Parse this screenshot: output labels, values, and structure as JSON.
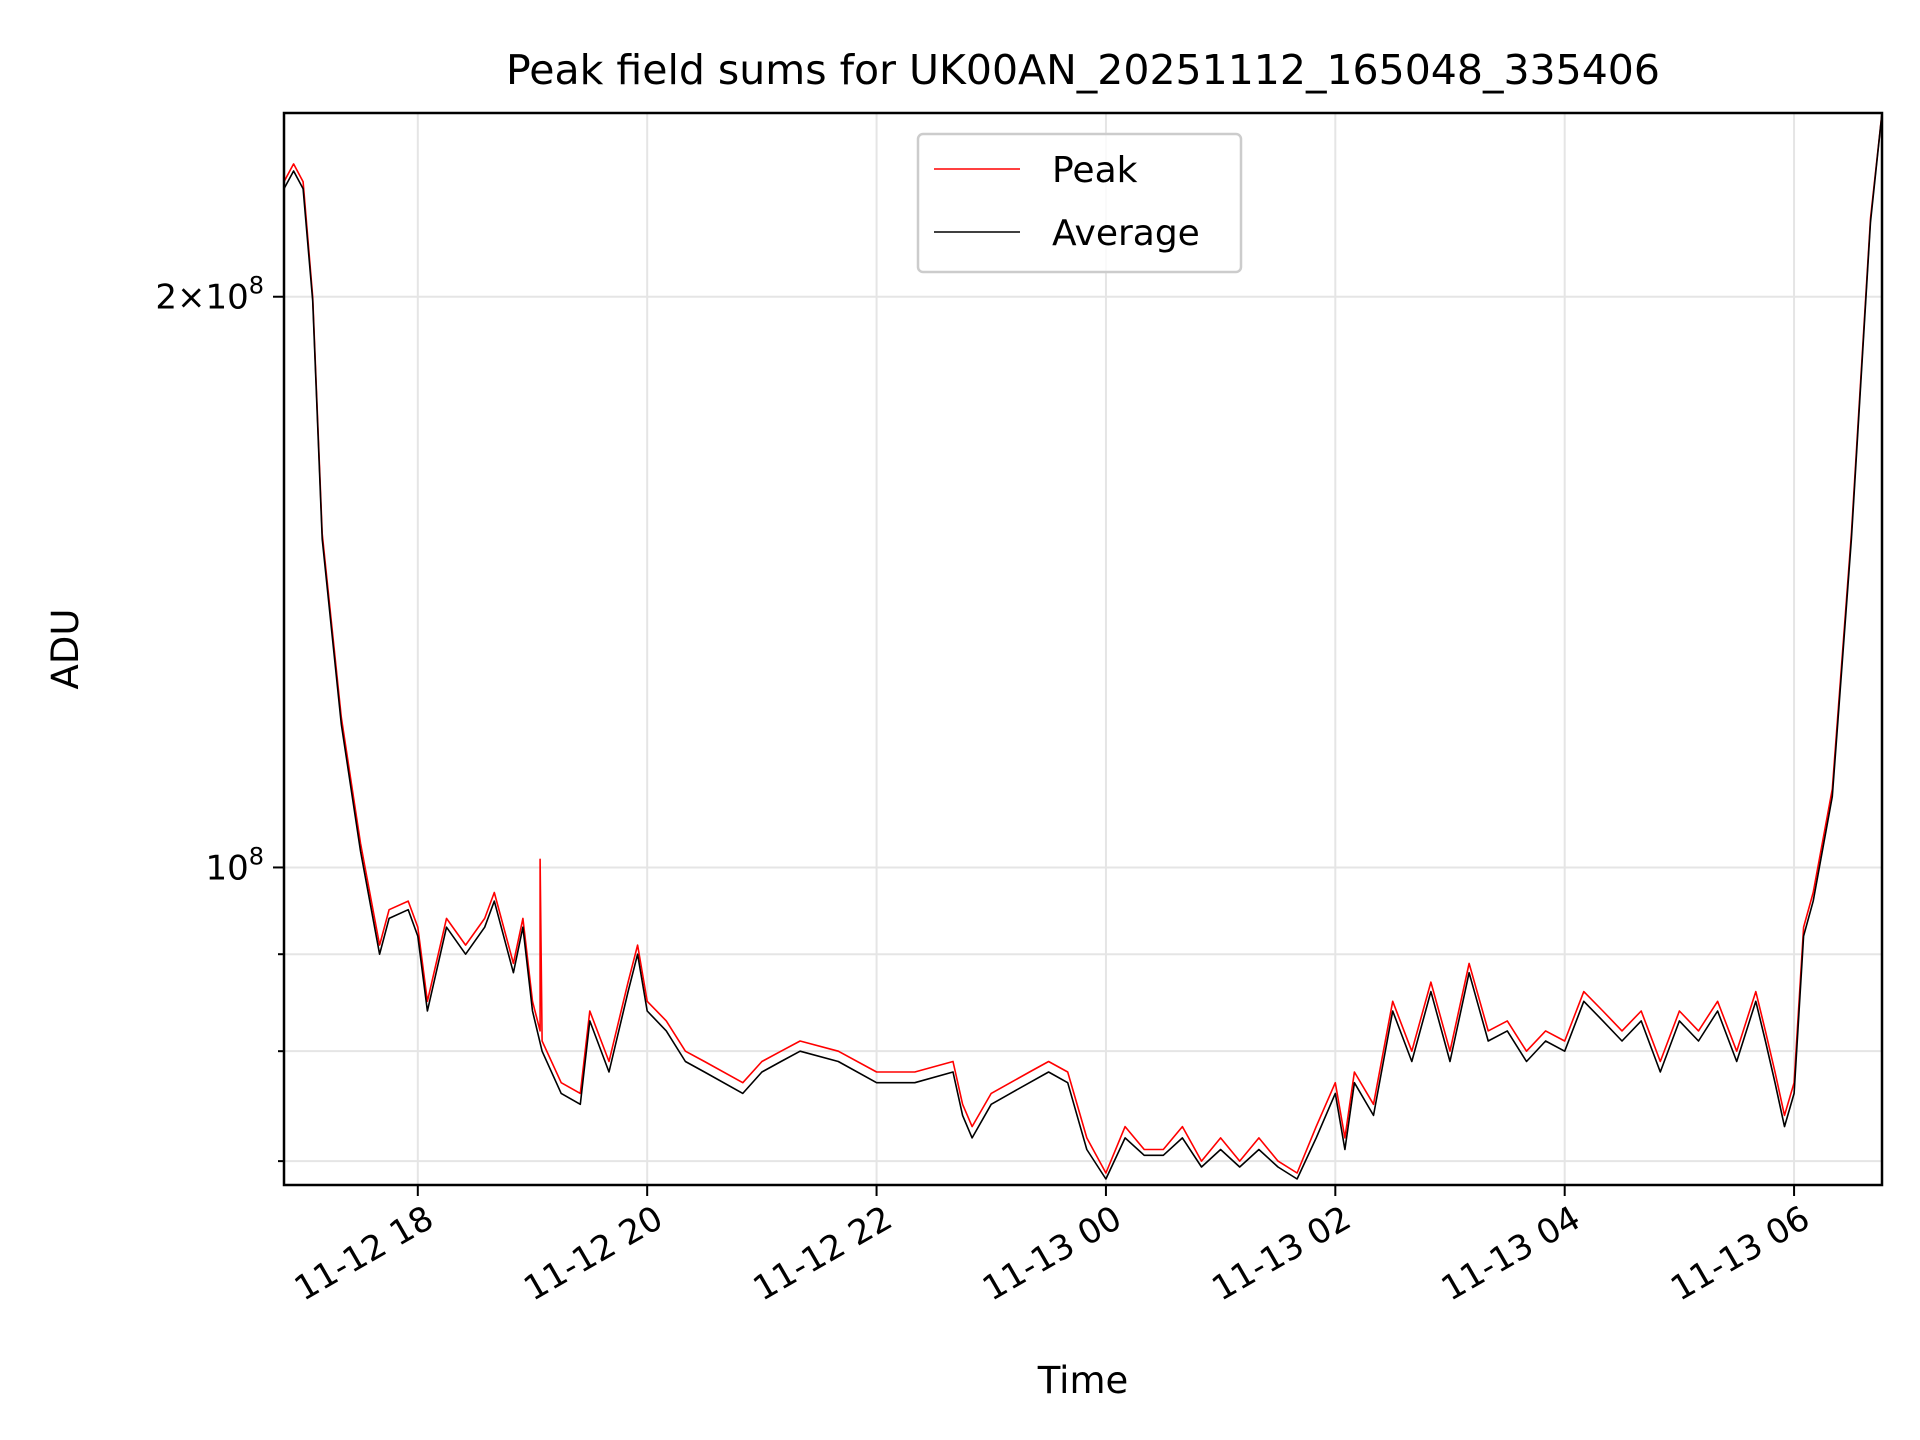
{
  "chart_data": {
    "type": "line",
    "title": "Peak field sums for UK00AN_20251112_165048_335406",
    "xlabel": "Time",
    "ylabel": "ADU",
    "yscale": "log",
    "xlim": [
      "2025-11-12T16:50",
      "2025-11-13T06:46"
    ],
    "ylim": [
      68000000,
      250000000
    ],
    "grid": true,
    "legend_position": "top-center",
    "x_ticks": [
      "11-12 18",
      "11-12 20",
      "11-12 22",
      "11-13 00",
      "11-13 02",
      "11-13 04",
      "11-13 06"
    ],
    "y_ticks": [
      {
        "value": 200000000,
        "label": "2 × 10⁸",
        "mantissa": "2",
        "exponent": "8",
        "major": true
      },
      {
        "value": 100000000,
        "label": "10⁸",
        "mantissa": "",
        "exponent": "8",
        "major": true
      },
      {
        "value": 90000000,
        "major": false
      },
      {
        "value": 80000000,
        "major": false
      },
      {
        "value": 70000000,
        "major": false
      }
    ],
    "colors": {
      "peak": "#ff0000",
      "average": "#000000"
    },
    "series": [
      {
        "name": "Peak",
        "color": "#ff0000",
        "x": [
          "2025-11-12T16:50",
          "2025-11-12T16:55",
          "2025-11-12T17:00",
          "2025-11-12T17:05",
          "2025-11-12T17:10",
          "2025-11-12T17:20",
          "2025-11-12T17:30",
          "2025-11-12T17:40",
          "2025-11-12T17:45",
          "2025-11-12T17:55",
          "2025-11-12T18:00",
          "2025-11-12T18:05",
          "2025-11-12T18:15",
          "2025-11-12T18:25",
          "2025-11-12T18:35",
          "2025-11-12T18:40",
          "2025-11-12T18:50",
          "2025-11-12T18:55",
          "2025-11-12T19:00",
          "2025-11-12T19:04",
          "2025-11-12T19:04",
          "2025-11-12T19:05",
          "2025-11-12T19:15",
          "2025-11-12T19:25",
          "2025-11-12T19:30",
          "2025-11-12T19:40",
          "2025-11-12T19:50",
          "2025-11-12T19:55",
          "2025-11-12T20:00",
          "2025-11-12T20:10",
          "2025-11-12T20:20",
          "2025-11-12T20:30",
          "2025-11-12T20:50",
          "2025-11-12T21:00",
          "2025-11-12T21:10",
          "2025-11-12T21:20",
          "2025-11-12T21:40",
          "2025-11-12T22:00",
          "2025-11-12T22:20",
          "2025-11-12T22:40",
          "2025-11-12T22:45",
          "2025-11-12T22:50",
          "2025-11-12T23:00",
          "2025-11-12T23:10",
          "2025-11-12T23:20",
          "2025-11-12T23:30",
          "2025-11-12T23:40",
          "2025-11-12T23:50",
          "2025-11-13T00:00",
          "2025-11-13T00:10",
          "2025-11-13T00:20",
          "2025-11-13T00:30",
          "2025-11-13T00:40",
          "2025-11-13T00:50",
          "2025-11-13T01:00",
          "2025-11-13T01:10",
          "2025-11-13T01:20",
          "2025-11-13T01:30",
          "2025-11-13T01:40",
          "2025-11-13T01:50",
          "2025-11-13T02:00",
          "2025-11-13T02:05",
          "2025-11-13T02:10",
          "2025-11-13T02:20",
          "2025-11-13T02:30",
          "2025-11-13T02:40",
          "2025-11-13T02:50",
          "2025-11-13T03:00",
          "2025-11-13T03:10",
          "2025-11-13T03:20",
          "2025-11-13T03:30",
          "2025-11-13T03:40",
          "2025-11-13T03:50",
          "2025-11-13T04:00",
          "2025-11-13T04:10",
          "2025-11-13T04:20",
          "2025-11-13T04:30",
          "2025-11-13T04:40",
          "2025-11-13T04:50",
          "2025-11-13T05:00",
          "2025-11-13T05:10",
          "2025-11-13T05:20",
          "2025-11-13T05:30",
          "2025-11-13T05:40",
          "2025-11-13T05:45",
          "2025-11-13T05:50",
          "2025-11-13T05:55",
          "2025-11-13T06:00",
          "2025-11-13T06:05",
          "2025-11-13T06:10",
          "2025-11-13T06:20",
          "2025-11-13T06:30",
          "2025-11-13T06:40",
          "2025-11-13T06:46"
        ],
        "values": [
          230000000,
          235000000,
          230000000,
          200000000,
          150000000,
          120000000,
          103000000,
          91000000,
          95000000,
          96000000,
          93000000,
          85000000,
          94000000,
          91000000,
          94000000,
          97000000,
          89000000,
          94000000,
          85000000,
          82000000,
          101000000,
          81000000,
          77000000,
          76000000,
          84000000,
          79000000,
          87000000,
          91000000,
          85000000,
          83000000,
          80000000,
          79000000,
          77000000,
          79000000,
          80000000,
          81000000,
          80000000,
          78000000,
          78000000,
          79000000,
          75000000,
          73000000,
          76000000,
          77000000,
          78000000,
          79000000,
          78000000,
          72000000,
          69000000,
          73000000,
          71000000,
          71000000,
          73000000,
          70000000,
          72000000,
          70000000,
          72000000,
          70000000,
          69000000,
          73000000,
          77000000,
          72000000,
          78000000,
          75000000,
          85000000,
          80000000,
          87000000,
          80000000,
          89000000,
          82000000,
          83000000,
          80000000,
          82000000,
          81000000,
          86000000,
          84000000,
          82000000,
          84000000,
          79000000,
          84000000,
          82000000,
          85000000,
          80000000,
          86000000,
          82000000,
          78000000,
          74000000,
          77000000,
          93000000,
          97000000,
          110000000,
          150000000,
          220000000,
          250000000
        ]
      },
      {
        "name": "Average",
        "color": "#000000",
        "x": [
          "2025-11-12T16:50",
          "2025-11-12T16:55",
          "2025-11-12T17:00",
          "2025-11-12T17:05",
          "2025-11-12T17:10",
          "2025-11-12T17:20",
          "2025-11-12T17:30",
          "2025-11-12T17:40",
          "2025-11-12T17:45",
          "2025-11-12T17:55",
          "2025-11-12T18:00",
          "2025-11-12T18:05",
          "2025-11-12T18:15",
          "2025-11-12T18:25",
          "2025-11-12T18:35",
          "2025-11-12T18:40",
          "2025-11-12T18:50",
          "2025-11-12T18:55",
          "2025-11-12T19:00",
          "2025-11-12T19:05",
          "2025-11-12T19:15",
          "2025-11-12T19:25",
          "2025-11-12T19:30",
          "2025-11-12T19:40",
          "2025-11-12T19:50",
          "2025-11-12T19:55",
          "2025-11-12T20:00",
          "2025-11-12T20:10",
          "2025-11-12T20:20",
          "2025-11-12T20:30",
          "2025-11-12T20:50",
          "2025-11-12T21:00",
          "2025-11-12T21:10",
          "2025-11-12T21:20",
          "2025-11-12T21:40",
          "2025-11-12T22:00",
          "2025-11-12T22:20",
          "2025-11-12T22:40",
          "2025-11-12T22:45",
          "2025-11-12T22:50",
          "2025-11-12T23:00",
          "2025-11-12T23:10",
          "2025-11-12T23:20",
          "2025-11-12T23:30",
          "2025-11-12T23:40",
          "2025-11-12T23:50",
          "2025-11-13T00:00",
          "2025-11-13T00:10",
          "2025-11-13T00:20",
          "2025-11-13T00:30",
          "2025-11-13T00:40",
          "2025-11-13T00:50",
          "2025-11-13T01:00",
          "2025-11-13T01:10",
          "2025-11-13T01:20",
          "2025-11-13T01:30",
          "2025-11-13T01:40",
          "2025-11-13T01:50",
          "2025-11-13T02:00",
          "2025-11-13T02:05",
          "2025-11-13T02:10",
          "2025-11-13T02:20",
          "2025-11-13T02:30",
          "2025-11-13T02:40",
          "2025-11-13T02:50",
          "2025-11-13T03:00",
          "2025-11-13T03:10",
          "2025-11-13T03:20",
          "2025-11-13T03:30",
          "2025-11-13T03:40",
          "2025-11-13T03:50",
          "2025-11-13T04:00",
          "2025-11-13T04:10",
          "2025-11-13T04:20",
          "2025-11-13T04:30",
          "2025-11-13T04:40",
          "2025-11-13T04:50",
          "2025-11-13T05:00",
          "2025-11-13T05:10",
          "2025-11-13T05:20",
          "2025-11-13T05:30",
          "2025-11-13T05:40",
          "2025-11-13T05:45",
          "2025-11-13T05:50",
          "2025-11-13T05:55",
          "2025-11-13T06:00",
          "2025-11-13T06:05",
          "2025-11-13T06:10",
          "2025-11-13T06:20",
          "2025-11-13T06:30",
          "2025-11-13T06:40",
          "2025-11-13T06:46"
        ],
        "values": [
          228000000,
          233000000,
          228000000,
          199000000,
          149000000,
          119000000,
          102000000,
          90000000,
          94000000,
          95000000,
          92000000,
          84000000,
          93000000,
          90000000,
          93000000,
          96000000,
          88000000,
          93000000,
          84000000,
          80000000,
          76000000,
          75000000,
          83000000,
          78000000,
          86000000,
          90000000,
          84000000,
          82000000,
          79000000,
          78000000,
          76000000,
          78000000,
          79000000,
          80000000,
          79000000,
          77000000,
          77000000,
          78000000,
          74000000,
          72000000,
          75000000,
          76000000,
          77000000,
          78000000,
          77000000,
          71000000,
          68500000,
          72000000,
          70500000,
          70500000,
          72000000,
          69500000,
          71000000,
          69500000,
          71000000,
          69500000,
          68500000,
          72000000,
          76000000,
          71000000,
          77000000,
          74000000,
          84000000,
          79000000,
          86000000,
          79000000,
          88000000,
          81000000,
          82000000,
          79000000,
          81000000,
          80000000,
          85000000,
          83000000,
          81000000,
          83000000,
          78000000,
          83000000,
          81000000,
          84000000,
          79000000,
          85000000,
          81000000,
          77000000,
          73000000,
          76000000,
          92000000,
          96000000,
          109000000,
          149000000,
          219000000,
          250000000
        ]
      }
    ]
  }
}
